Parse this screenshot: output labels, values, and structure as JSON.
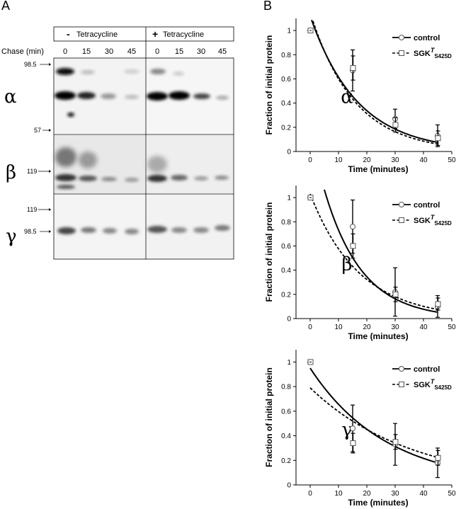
{
  "panels": {
    "a": "A",
    "b": "B"
  },
  "blot": {
    "chase_label": "Chase (min)",
    "conditions": [
      {
        "sign": "-",
        "label": "Tetracycline"
      },
      {
        "sign": "+",
        "label": "Tetracycline"
      }
    ],
    "times": [
      "0",
      "15",
      "30",
      "45",
      "0",
      "15",
      "30",
      "45"
    ],
    "subunits": [
      {
        "symbol": "α",
        "markers": [
          "98.5",
          "57"
        ]
      },
      {
        "symbol": "β",
        "markers": [
          "119"
        ]
      },
      {
        "symbol": "γ",
        "markers": [
          "119",
          "98.5"
        ]
      }
    ]
  },
  "chart_data": [
    {
      "type": "line",
      "annotation": "α",
      "xlabel": "Time (minutes)",
      "ylabel": "Fraction of initial protein",
      "xlim": [
        -5,
        50
      ],
      "ylim": [
        0,
        1.1
      ],
      "xticks": [
        0,
        10,
        20,
        30,
        40,
        50
      ],
      "yticks": [
        0,
        0.2,
        0.4,
        0.6,
        0.8,
        1
      ],
      "legend_position": "top-right",
      "series": [
        {
          "name": "control",
          "x": [
            0,
            15,
            30,
            45
          ],
          "y": [
            1.0,
            0.67,
            0.27,
            0.13
          ],
          "err": [
            0,
            0.17,
            0.08,
            0.09
          ],
          "fit_rate": 0.06,
          "fit_a": 1.12,
          "dash": false
        },
        {
          "name": "SGK",
          "name_sup": "T",
          "name_sub": "S425D",
          "x": [
            0,
            15,
            30,
            45
          ],
          "y": [
            1.0,
            0.69,
            0.22,
            0.11
          ],
          "err": [
            0,
            0.1,
            0.06,
            0.06
          ],
          "fit_rate": 0.065,
          "fit_a": 1.15,
          "dash": true
        }
      ]
    },
    {
      "type": "line",
      "annotation": "β",
      "xlabel": "Time (minutes)",
      "ylabel": "Fraction of initial protein",
      "xlim": [
        -5,
        50
      ],
      "ylim": [
        0,
        1.1
      ],
      "xticks": [
        0,
        10,
        20,
        30,
        40,
        50
      ],
      "yticks": [
        0,
        0.2,
        0.4,
        0.6,
        0.8,
        1
      ],
      "legend_position": "top-right",
      "series": [
        {
          "name": "control",
          "x": [
            0,
            15,
            30,
            45
          ],
          "y": [
            1.0,
            0.76,
            0.22,
            0.1
          ],
          "err": [
            0,
            0.22,
            0.2,
            0.09
          ],
          "fit_rate": 0.075,
          "fit_a": 1.55,
          "dash": false
        },
        {
          "name": "SGK",
          "name_sup": "T",
          "name_sub": "S425D",
          "x": [
            0,
            15,
            30,
            45
          ],
          "y": [
            1.0,
            0.6,
            0.2,
            0.12
          ],
          "err": [
            0,
            0.1,
            0.06,
            0.05
          ],
          "fit_rate": 0.058,
          "fit_a": 1.03,
          "dash": true
        }
      ]
    },
    {
      "type": "line",
      "annotation": "γ",
      "xlabel": "Time (minutes)",
      "ylabel": "Fraction of initial protein",
      "xlim": [
        -5,
        50
      ],
      "ylim": [
        0,
        1.1
      ],
      "xticks": [
        0,
        10,
        20,
        30,
        40,
        50
      ],
      "yticks": [
        0,
        0.2,
        0.4,
        0.6,
        0.8,
        1
      ],
      "legend_position": "top-right",
      "series": [
        {
          "name": "control",
          "x": [
            0,
            15,
            30,
            45
          ],
          "y": [
            1.0,
            0.46,
            0.33,
            0.18
          ],
          "err": [
            0,
            0.19,
            0.17,
            0.12
          ],
          "fit_rate": 0.037,
          "fit_a": 0.95,
          "dash": false
        },
        {
          "name": "SGK",
          "name_sup": "T",
          "name_sub": "S425D",
          "x": [
            0,
            15,
            30,
            45
          ],
          "y": [
            1.0,
            0.34,
            0.35,
            0.22
          ],
          "err": [
            0,
            0.08,
            0.06,
            0.06
          ],
          "fit_rate": 0.028,
          "fit_a": 0.79,
          "dash": true
        }
      ]
    }
  ]
}
